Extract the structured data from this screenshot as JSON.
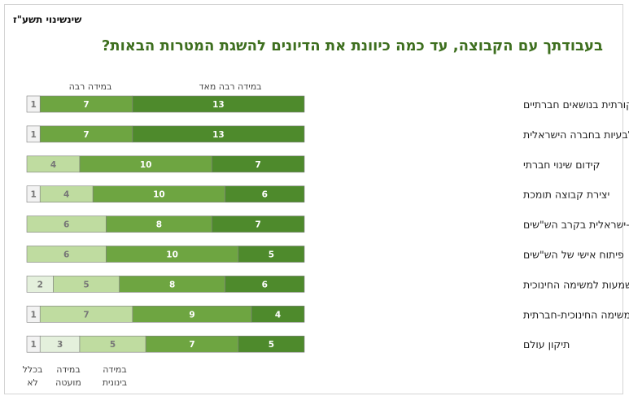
{
  "header": {
    "corner_label": "שינשינוי תשע\"ז",
    "title": "בעבודתך עם הקבוצה, עד כמה כיוונת את הדיונים להשגת המטרות הבאות?"
  },
  "colors": {
    "series": [
      "#f2f2f2",
      "#e4f0dc",
      "#bfdca0",
      "#6ea541",
      "#4e8a2c"
    ],
    "text_light": "#ffffff",
    "text_dark": "#777777",
    "border": "#7f7f7f"
  },
  "chart_data": {
    "type": "bar",
    "orientation": "horizontal-stacked",
    "title": "בעבודתך עם הקבוצה, עד כמה כיוונת את הדיונים להשגת המטרות הבאות?",
    "categories": [
      "פיתוח חשיבה ביקורתית בנושאים חברתיים",
      "פיתוח מודעות לבעיות בחברה הישראלית",
      "קידום שינוי חברתי",
      "יצירת קבוצה תומכת",
      "גיבוש זהות יהודית-ישראלית בקרב הש\"שים",
      "פיתוח אישי של הש\"שים",
      "הענקת משמעות למשימה החינוכית",
      "הכרת הערכים היהודיים שמאחורי המשימה החינוכית-חברתית",
      "תיקון עולם"
    ],
    "series": [
      {
        "name": "בכלל לא",
        "values": [
          1,
          1,
          0,
          1,
          0,
          0,
          0,
          1,
          1
        ]
      },
      {
        "name": "במידה מועטה",
        "values": [
          0,
          0,
          0,
          0,
          0,
          0,
          2,
          0,
          3
        ]
      },
      {
        "name": "במידה בינונית",
        "values": [
          0,
          0,
          4,
          4,
          6,
          6,
          5,
          7,
          5
        ]
      },
      {
        "name": "במידה רבה",
        "values": [
          7,
          7,
          10,
          10,
          8,
          10,
          8,
          9,
          7
        ]
      },
      {
        "name": "במידה רבה מאד",
        "values": [
          13,
          13,
          7,
          6,
          7,
          5,
          6,
          4,
          5
        ]
      }
    ],
    "legend": {
      "bottom": [
        "בכלל לא",
        "במידה מועטה",
        "במידה בינונית"
      ],
      "top": [
        "במידה רבה",
        "במידה רבה מאד"
      ]
    },
    "grid": false
  }
}
